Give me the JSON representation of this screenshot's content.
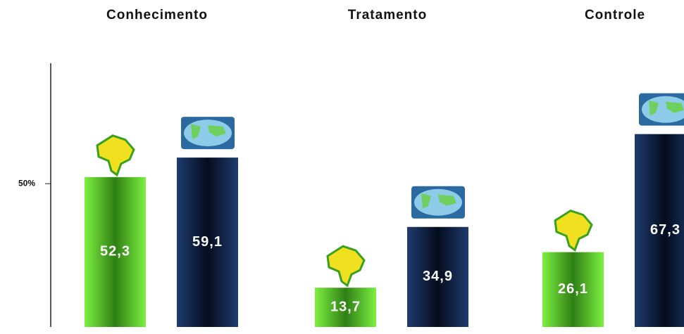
{
  "chart_data": {
    "type": "bar",
    "categories": [
      "Conhecimento",
      "Tratamento",
      "Controle"
    ],
    "series": [
      {
        "color": "#5ccf2a",
        "values": [
          52.3,
          13.7,
          26.1
        ],
        "value_labels": [
          "52,3",
          "13,7",
          "26,1"
        ]
      },
      {
        "color": "#0f2248",
        "values": [
          59.1,
          34.9,
          67.3
        ],
        "value_labels": [
          "59,1",
          "34,9",
          "67,3"
        ]
      }
    ],
    "ylim": [
      0,
      92
    ],
    "yticks": [
      {
        "value": 50,
        "label": "50%"
      }
    ]
  }
}
